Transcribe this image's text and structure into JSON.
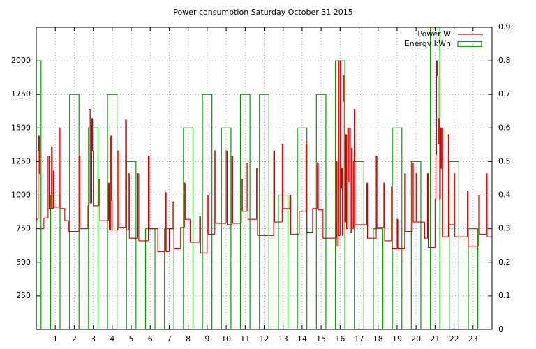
{
  "chart_data": {
    "type": "line",
    "title": "Power consumption Saturday October 31 2015",
    "xlim": [
      0,
      24
    ],
    "xticks": [
      1,
      2,
      3,
      4,
      5,
      6,
      7,
      8,
      9,
      10,
      11,
      12,
      13,
      14,
      15,
      16,
      17,
      18,
      19,
      20,
      21,
      22,
      23
    ],
    "ylim": [
      0,
      2250
    ],
    "yticks": [
      250,
      500,
      750,
      1000,
      1250,
      1500,
      1750,
      2000
    ],
    "y2lim": [
      0,
      0.9
    ],
    "y2ticks": [
      0,
      0.1,
      0.2,
      0.3,
      0.4,
      0.5,
      0.6,
      0.7,
      0.8,
      0.9
    ],
    "grid": true,
    "legend": "top-right",
    "series": [
      {
        "name": "Power W",
        "color": "#cc0000",
        "style": "steps",
        "x": [
          0,
          0.1,
          0.13,
          0.16,
          0.2,
          0.4,
          0.62,
          0.68,
          0.8,
          0.84,
          0.9,
          0.94,
          1.2,
          1.25,
          1.5,
          1.7,
          2.25,
          2.3,
          2.72,
          2.78,
          2.84,
          2.92,
          2.96,
          3,
          3.3,
          3.35,
          3.8,
          3.84,
          3.92,
          3.96,
          4,
          4.3,
          4.35,
          4.7,
          4.75,
          4.85,
          4.9,
          5.35,
          5.4,
          5.9,
          5.95,
          6.4,
          6.8,
          6.84,
          7,
          7.2,
          7.25,
          7.6,
          7.8,
          7.84,
          8.1,
          8.6,
          8.65,
          9,
          9.05,
          9.4,
          9.45,
          10,
          10.05,
          10.3,
          10.35,
          10.8,
          10.85,
          11.1,
          11.15,
          11.6,
          11.65,
          12.5,
          12.55,
          12.95,
          13,
          13.35,
          13.4,
          13.85,
          14.2,
          14.25,
          14.55,
          14.8,
          14.85,
          15.1,
          15.8,
          15.84,
          15.9,
          15.94,
          16,
          16.04,
          16.08,
          16.12,
          16.16,
          16.2,
          16.24,
          16.3,
          16.34,
          16.4,
          16.44,
          16.5,
          16.54,
          16.6,
          16.64,
          16.7,
          16.74,
          16.78,
          17.4,
          17.44,
          17.9,
          17.94,
          18.3,
          18.34,
          18.7,
          18.74,
          19,
          19.04,
          19.4,
          19.44,
          19.8,
          19.85,
          20,
          20.04,
          20.45,
          20.6,
          20.64,
          21,
          21.04,
          21.08,
          21.12,
          21.16,
          21.2,
          21.24,
          21.28,
          21.32,
          21.36,
          21.4,
          21.7,
          21.74,
          22,
          22.04,
          22.7,
          22.74,
          23.3,
          23.34,
          23.7,
          23.74
        ],
        "values": [
          820,
          1330,
          1440,
          1160,
          750,
          830,
          1290,
          900,
          1360,
          900,
          1180,
          910,
          1500,
          900,
          810,
          730,
          1290,
          750,
          920,
          1640,
          940,
          1570,
          1330,
          920,
          1120,
          810,
          1090,
          740,
          1440,
          960,
          740,
          1330,
          760,
          1560,
          740,
          1160,
          680,
          1160,
          660,
          1290,
          750,
          580,
          1020,
          580,
          750,
          950,
          600,
          760,
          1090,
          820,
          650,
          840,
          570,
          1000,
          710,
          1330,
          790,
          1330,
          780,
          1290,
          790,
          1120,
          880,
          1240,
          820,
          1200,
          700,
          1330,
          800,
          1380,
          900,
          1000,
          710,
          880,
          1380,
          720,
          900,
          1240,
          890,
          680,
          1250,
          620,
          2000,
          700,
          2000,
          1050,
          1200,
          700,
          1890,
          1700,
          800,
          1450,
          750,
          1500,
          1100,
          1500,
          720,
          1350,
          750,
          1250,
          1640,
          780,
          1090,
          680,
          1290,
          760,
          1090,
          660,
          1060,
          600,
          820,
          600,
          1160,
          730,
          1240,
          800,
          1160,
          800,
          680,
          1160,
          610,
          970,
          1300,
          2000,
          1890,
          1380,
          1570,
          970,
          1500,
          1200,
          1500,
          690,
          1450,
          780,
          1160,
          690,
          1030,
          620,
          1000,
          710,
          1160,
          690
        ]
      },
      {
        "name": "Energy kWh",
        "color": "#00a000",
        "style": "boxes",
        "axis": "y2",
        "x": [
          0,
          1,
          2,
          3,
          4,
          5,
          6,
          7,
          8,
          9,
          10,
          11,
          12,
          13,
          14,
          15,
          16,
          17,
          18,
          19,
          20,
          21,
          22,
          23
        ],
        "values": [
          0.8,
          0.4,
          0.7,
          0.6,
          0.7,
          0.5,
          0.3,
          0.3,
          0.6,
          0.7,
          0.6,
          0.7,
          0.7,
          0.4,
          0.6,
          0.7,
          0.8,
          0.5,
          0.3,
          0.6,
          0.5,
          0.9,
          0.5,
          0.3
        ]
      }
    ]
  }
}
